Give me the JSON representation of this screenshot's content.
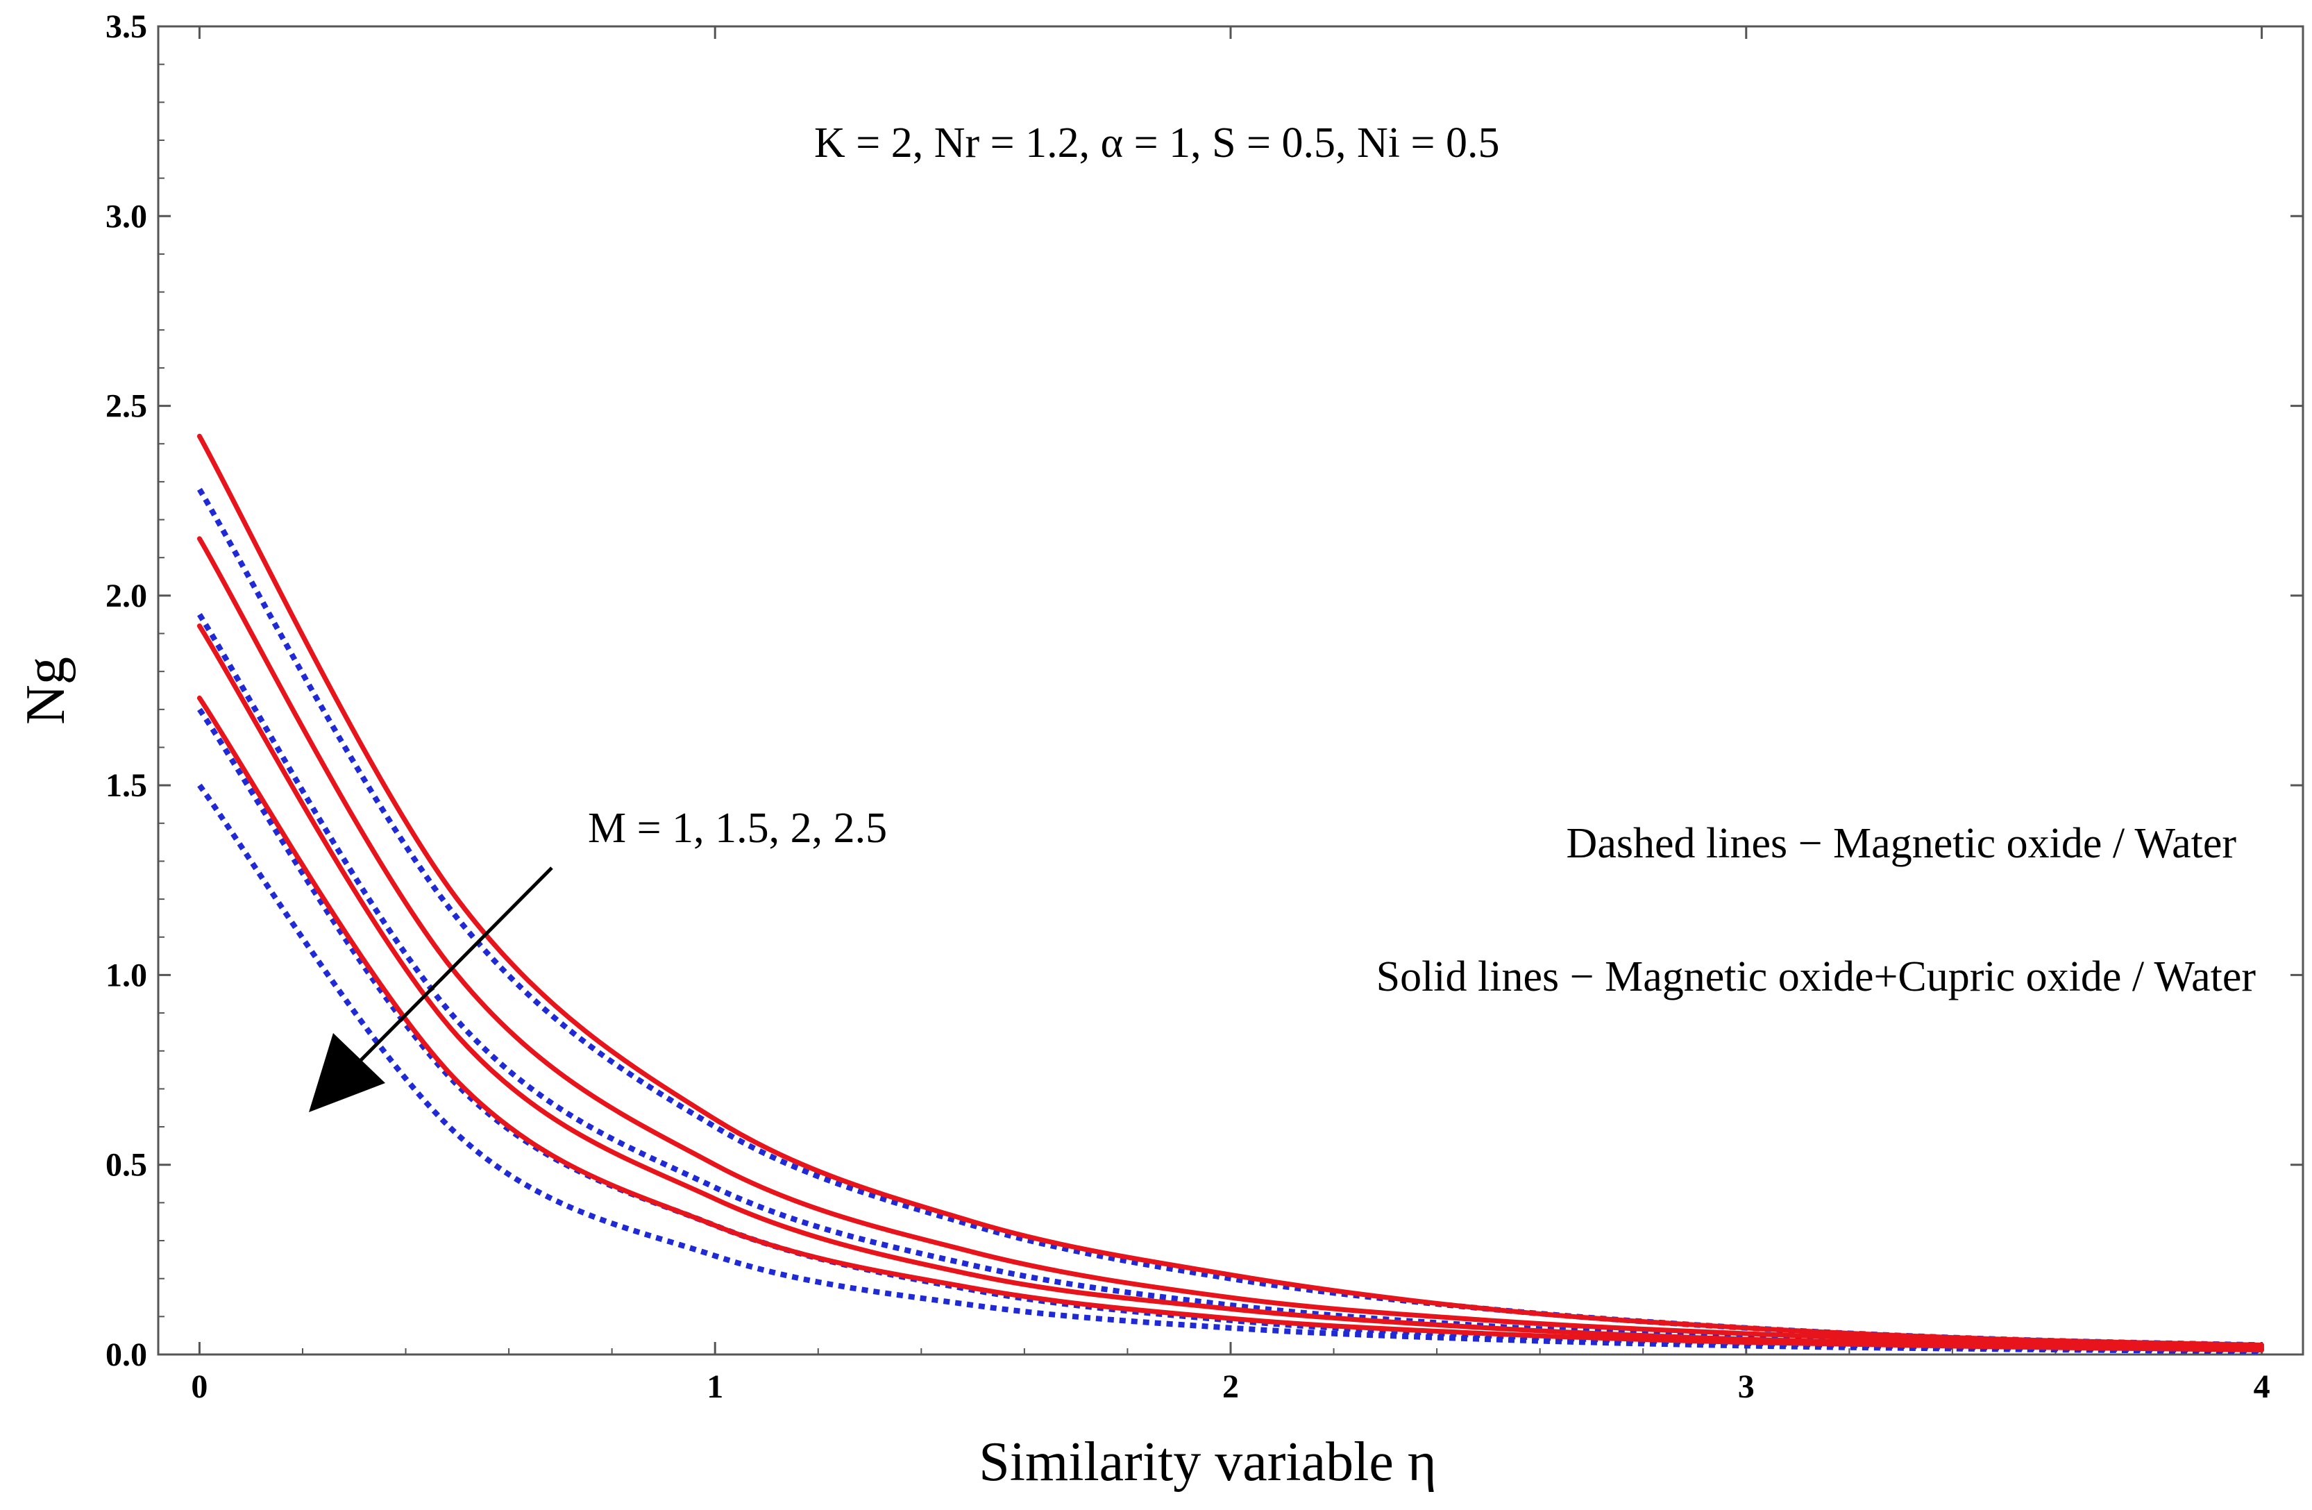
{
  "chart_data": {
    "type": "line",
    "title": "",
    "xlabel": "Similarity variable η",
    "ylabel": "Ng",
    "xlim": [
      -0.08,
      4.08
    ],
    "ylim": [
      0,
      3.5
    ],
    "x_ticks": [
      "0",
      "1",
      "2",
      "3",
      "4"
    ],
    "y_ticks": [
      "0.0",
      "0.5",
      "1.0",
      "1.5",
      "2.0",
      "2.5",
      "3.0",
      "3.5"
    ],
    "parameters_text": "K = 2,  Nr = 1.2,  α = 1, S = 0.5, Ni = 0.5",
    "arrow_label": "M = 1, 1.5, 2, 2.5",
    "legend": {
      "dashed": "Dashed lines − Magnetic oxide / Water",
      "solid": "Solid lines − Magnetic oxide+Cupric oxide / Water"
    },
    "colors": {
      "solid": "#e8141b",
      "dashed": "#1f2ad6"
    },
    "series": [
      {
        "name": "M = 1 (hybrid)",
        "style": "solid",
        "x": [
          0,
          0.5,
          1,
          1.5,
          2,
          2.5,
          3,
          3.5,
          4
        ],
        "values": [
          2.42,
          1.2,
          0.62,
          0.35,
          0.21,
          0.12,
          0.07,
          0.04,
          0.025
        ]
      },
      {
        "name": "M = 1.5 (hybrid)",
        "style": "solid",
        "x": [
          0,
          0.5,
          1,
          1.5,
          2,
          2.5,
          3,
          3.5,
          4
        ],
        "values": [
          2.15,
          1.0,
          0.5,
          0.27,
          0.15,
          0.09,
          0.055,
          0.033,
          0.02
        ]
      },
      {
        "name": "M = 2 (hybrid)",
        "style": "solid",
        "x": [
          0,
          0.5,
          1,
          1.5,
          2,
          2.5,
          3,
          3.5,
          4
        ],
        "values": [
          1.92,
          0.84,
          0.41,
          0.21,
          0.12,
          0.07,
          0.04,
          0.025,
          0.015
        ]
      },
      {
        "name": "M = 2.5 (hybrid)",
        "style": "solid",
        "x": [
          0,
          0.5,
          1,
          1.5,
          2,
          2.5,
          3,
          3.5,
          4
        ],
        "values": [
          1.73,
          0.72,
          0.34,
          0.175,
          0.095,
          0.055,
          0.032,
          0.02,
          0.012
        ]
      },
      {
        "name": "M = 1 (nanofluid)",
        "style": "dashed",
        "x": [
          0,
          0.5,
          1,
          1.5,
          2,
          2.5,
          3,
          3.5,
          4
        ],
        "values": [
          2.28,
          1.15,
          0.6,
          0.34,
          0.2,
          0.12,
          0.07,
          0.04,
          0.025
        ]
      },
      {
        "name": "M = 1.5 (nanofluid)",
        "style": "dashed",
        "x": [
          0,
          0.5,
          1,
          1.5,
          2,
          2.5,
          3,
          3.5,
          4
        ],
        "values": [
          1.95,
          0.88,
          0.44,
          0.235,
          0.13,
          0.075,
          0.045,
          0.027,
          0.017
        ]
      },
      {
        "name": "M = 2 (nanofluid)",
        "style": "dashed",
        "x": [
          0,
          0.5,
          1,
          1.5,
          2,
          2.5,
          3,
          3.5,
          4
        ],
        "values": [
          1.7,
          0.71,
          0.34,
          0.17,
          0.09,
          0.05,
          0.03,
          0.018,
          0.011
        ]
      },
      {
        "name": "M = 2.5 (nanofluid)",
        "style": "dashed",
        "x": [
          0,
          0.5,
          1,
          1.5,
          2,
          2.5,
          3,
          3.5,
          4
        ],
        "values": [
          1.5,
          0.58,
          0.26,
          0.13,
          0.07,
          0.04,
          0.023,
          0.014,
          0.008
        ]
      }
    ]
  }
}
